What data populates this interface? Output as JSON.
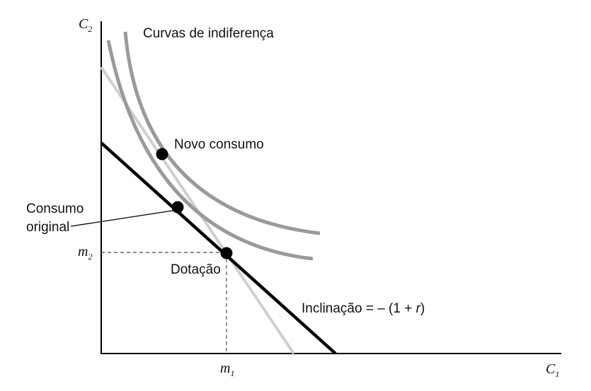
{
  "diagram": {
    "y_axis_label": "C",
    "y_axis_sub": "2",
    "x_axis_label": "C",
    "x_axis_sub": "1",
    "m2_label": "m",
    "m2_sub": "2",
    "m1_label": "m",
    "m1_sub": "1",
    "indifference_title": "Curvas de indiferença",
    "new_consumption": "Novo consumo",
    "original_consumption_line1": "Consumo",
    "original_consumption_line2": "original",
    "endowment": "Dotação",
    "slope_prefix": "Inclinação = – (1 + ",
    "slope_var": "r",
    "slope_suffix": ")",
    "colors": {
      "axes": "#000000",
      "budget_line": "#000000",
      "new_budget_line": "#cccccc",
      "indifference_curves": "#999999",
      "points": "#000000",
      "guides": "#666666"
    }
  }
}
